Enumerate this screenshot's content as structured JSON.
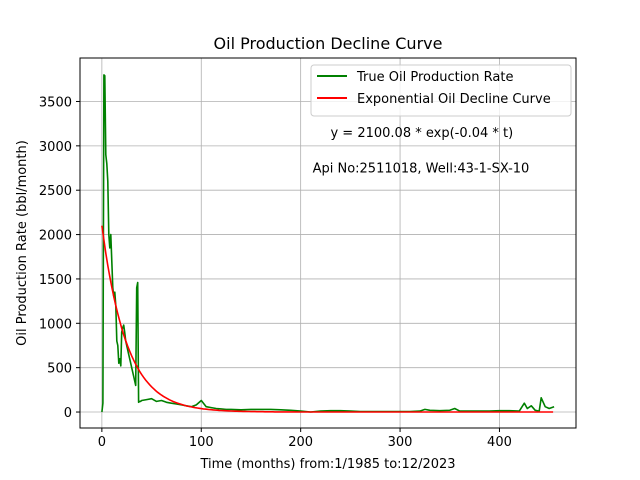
{
  "chart_data": {
    "type": "line",
    "title": "Oil Production Decline Curve",
    "xlabel": "Time (months) from:1/1985 to:12/2023",
    "ylabel": "Oil Production Rate (bbl/month)",
    "xlim": [
      -22,
      477
    ],
    "ylim": [
      -180,
      3990
    ],
    "x_ticks": [
      0,
      100,
      200,
      300,
      400
    ],
    "y_ticks": [
      0,
      500,
      1000,
      1500,
      2000,
      2500,
      3000,
      3500
    ],
    "grid": true,
    "legend_position": "top-right",
    "annotations": [
      {
        "text": "y = 2100.08 * exp(-0.04 * t)",
        "x": 230,
        "y": 3100
      },
      {
        "text": "Api No:2511018, Well:43-1-SX-10",
        "x": 212,
        "y": 2700
      }
    ],
    "series": [
      {
        "name": "True Oil Production Rate",
        "color": "#008000",
        "x": [
          0,
          1,
          2,
          3,
          4,
          5,
          6,
          7,
          8,
          9,
          10,
          11,
          12,
          13,
          14,
          15,
          16,
          17,
          18,
          19,
          20,
          21,
          22,
          23,
          24,
          25,
          26,
          27,
          28,
          29,
          30,
          31,
          32,
          33,
          34,
          35,
          36,
          37,
          38,
          39,
          40,
          45,
          50,
          55,
          60,
          65,
          70,
          75,
          80,
          85,
          90,
          95,
          100,
          105,
          110,
          115,
          120,
          125,
          130,
          140,
          150,
          160,
          170,
          180,
          190,
          200,
          210,
          220,
          230,
          240,
          250,
          260,
          270,
          280,
          290,
          300,
          310,
          320,
          325,
          330,
          340,
          350,
          355,
          360,
          370,
          380,
          390,
          400,
          410,
          420,
          425,
          428,
          432,
          436,
          440,
          442,
          446,
          450,
          455
        ],
        "y": [
          0,
          100,
          3800,
          3790,
          2900,
          2800,
          2600,
          2000,
          1850,
          2000,
          1700,
          1400,
          1300,
          1350,
          1200,
          800,
          750,
          550,
          600,
          520,
          900,
          950,
          980,
          900,
          800,
          750,
          700,
          650,
          600,
          550,
          500,
          450,
          400,
          350,
          300,
          1400,
          1460,
          110,
          120,
          120,
          130,
          140,
          150,
          120,
          130,
          110,
          100,
          90,
          80,
          70,
          60,
          80,
          130,
          60,
          50,
          40,
          35,
          30,
          30,
          25,
          30,
          30,
          30,
          25,
          20,
          10,
          0,
          10,
          15,
          15,
          10,
          5,
          5,
          5,
          5,
          5,
          5,
          10,
          30,
          20,
          15,
          20,
          40,
          10,
          10,
          10,
          10,
          15,
          15,
          10,
          100,
          40,
          70,
          20,
          10,
          160,
          60,
          40,
          60
        ]
      },
      {
        "name": "Exponential Oil Decline Curve",
        "color": "#ff0000",
        "equation": {
          "a": 2100.08,
          "b": -0.04
        }
      }
    ]
  }
}
